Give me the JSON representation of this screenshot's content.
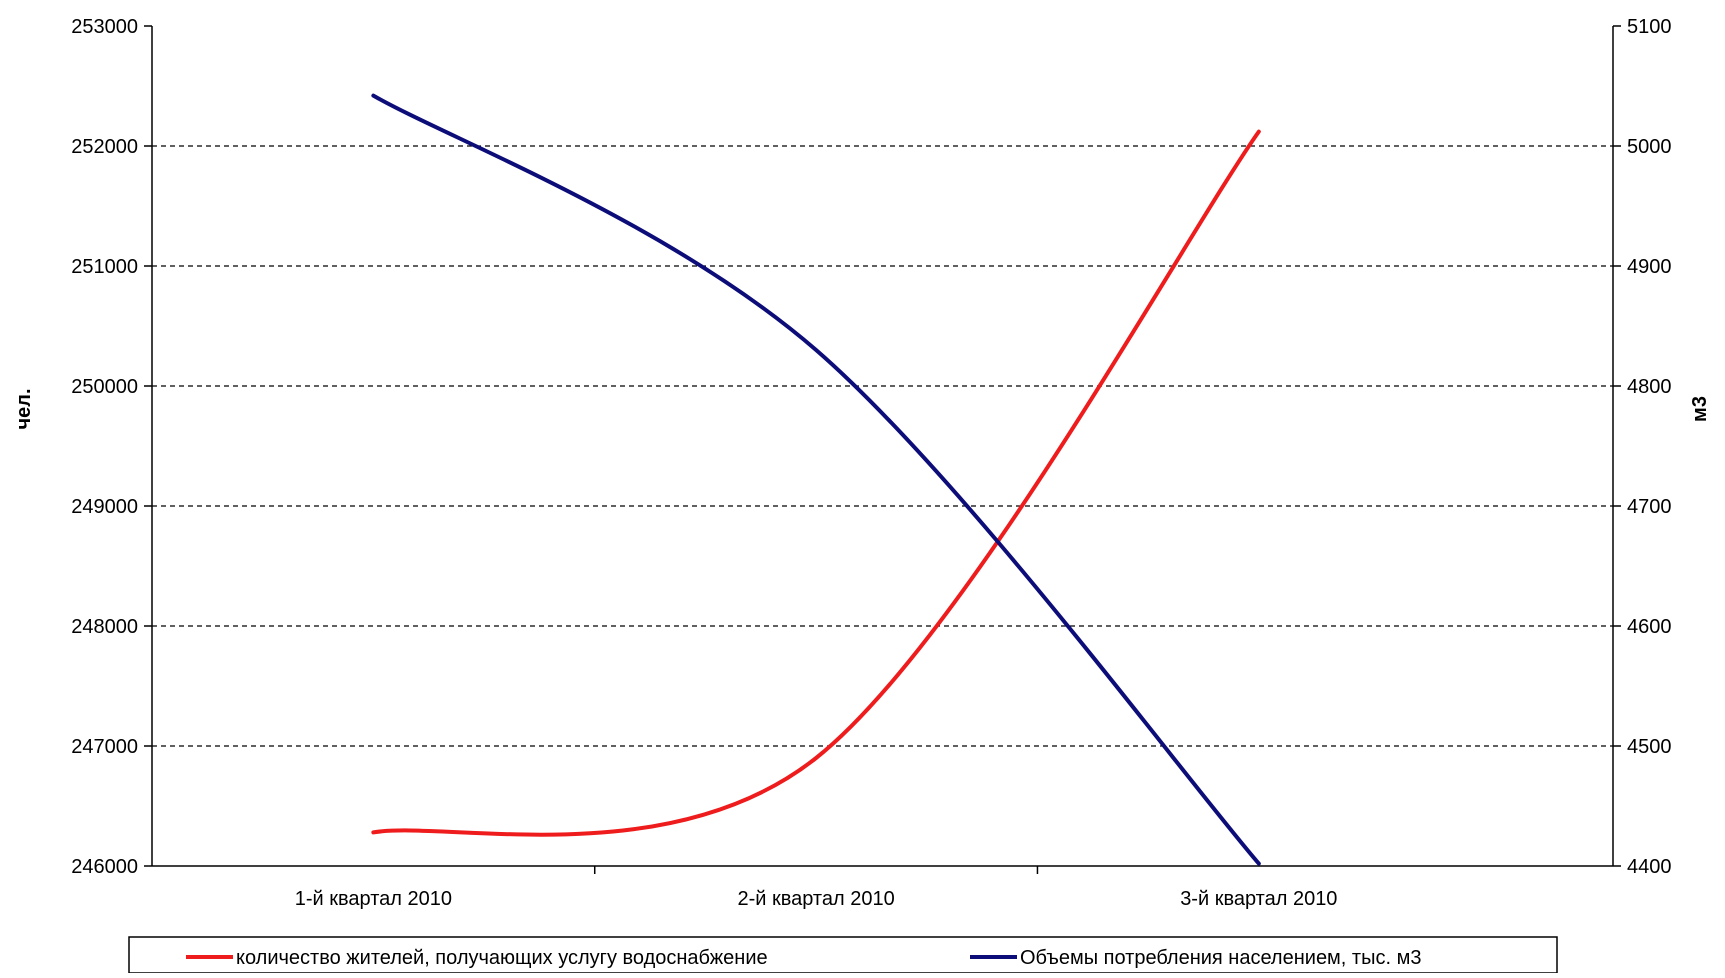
{
  "chart_data": {
    "type": "line",
    "categories": [
      "1-й квартал 2010",
      "2-й квартал 2010",
      "3-й квартал 2010"
    ],
    "y_left": {
      "label": "чел.",
      "min": 246000,
      "max": 253000,
      "ticks": [
        "246000",
        "247000",
        "248000",
        "249000",
        "250000",
        "251000",
        "252000",
        "253000"
      ]
    },
    "y_right": {
      "label": "м3",
      "min": 4400,
      "max": 5100,
      "ticks": [
        "4400",
        "4500",
        "4600",
        "4700",
        "4800",
        "4900",
        "5000",
        "5100"
      ]
    },
    "grid": "horizontal dashed",
    "legend_position": "bottom",
    "series": [
      {
        "name": "количество жителей, получающих услугу водоснабжение",
        "axis": "left",
        "color": "#ee1c1c",
        "values": [
          246280,
          246900,
          252120
        ]
      },
      {
        "name": "Объемы потребления населением, тыс. м3",
        "axis": "right",
        "color": "#0d0d7a",
        "values": [
          5042,
          4830,
          4402
        ]
      }
    ]
  }
}
